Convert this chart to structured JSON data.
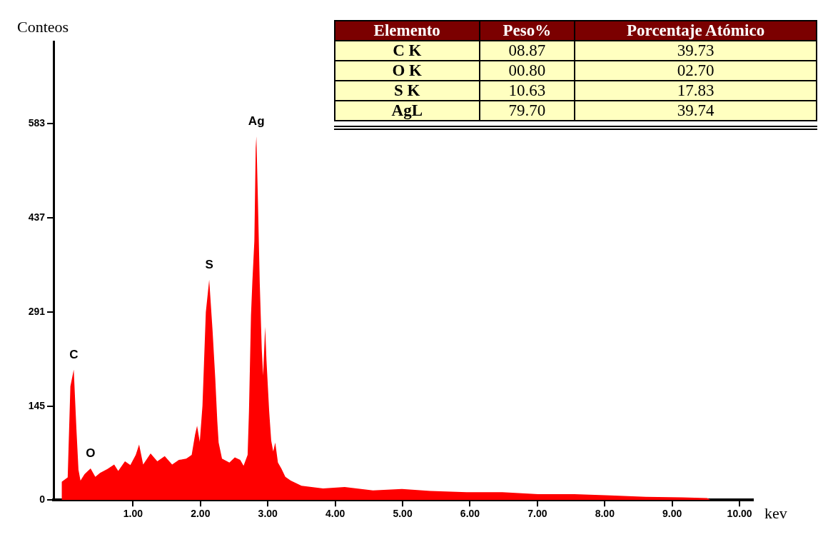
{
  "chart_data": [
    {
      "type": "area",
      "xlabel": "kev",
      "ylabel": "Conteos",
      "xlim": [
        -0.18,
        10.2
      ],
      "ylim": [
        0,
        710
      ],
      "xticks": [
        {
          "value": 1,
          "label": "1.00"
        },
        {
          "value": 2,
          "label": "2.00"
        },
        {
          "value": 3,
          "label": "3.00"
        },
        {
          "value": 4,
          "label": "4.00"
        },
        {
          "value": 5,
          "label": "5.00"
        },
        {
          "value": 6,
          "label": "6.00"
        },
        {
          "value": 7,
          "label": "7.00"
        },
        {
          "value": 8,
          "label": "8.00"
        },
        {
          "value": 9,
          "label": "9.00"
        },
        {
          "value": 10,
          "label": "10.00"
        }
      ],
      "yticks": [
        0,
        145,
        291,
        437,
        583
      ],
      "x": [
        -0.06,
        0.03,
        0.07,
        0.12,
        0.16,
        0.19,
        0.22,
        0.28,
        0.33,
        0.37,
        0.44,
        0.51,
        0.62,
        0.72,
        0.78,
        0.88,
        0.96,
        1.04,
        1.09,
        1.15,
        1.26,
        1.36,
        1.47,
        1.58,
        1.68,
        1.79,
        1.87,
        1.92,
        1.95,
        1.99,
        2.03,
        2.08,
        2.13,
        2.18,
        2.22,
        2.25,
        2.27,
        2.32,
        2.43,
        2.51,
        2.59,
        2.64,
        2.7,
        2.72,
        2.75,
        2.77,
        2.8,
        2.82,
        2.83,
        2.85,
        2.88,
        2.91,
        2.93,
        2.96,
        2.98,
        3.02,
        3.05,
        3.08,
        3.11,
        3.15,
        3.2,
        3.26,
        3.34,
        3.5,
        3.82,
        4.14,
        4.56,
        4.99,
        5.41,
        5.95,
        6.48,
        7.01,
        7.55,
        8.08,
        8.61,
        9.15,
        9.52,
        9.57
      ],
      "series": [
        {
          "color": "#ff0000",
          "values": [
            28,
            35,
            176,
            202,
            109,
            47,
            30,
            40,
            45,
            49,
            36,
            42,
            48,
            55,
            45,
            60,
            54,
            70,
            86,
            55,
            72,
            60,
            68,
            55,
            62,
            64,
            70,
            101,
            115,
            90,
            146,
            291,
            341,
            262,
            188,
            122,
            89,
            64,
            58,
            66,
            62,
            53,
            70,
            137,
            286,
            337,
            401,
            545,
            563,
            477,
            336,
            233,
            193,
            268,
            216,
            137,
            92,
            75,
            89,
            58,
            49,
            36,
            30,
            22,
            18,
            20,
            15,
            17,
            14,
            12,
            12,
            9,
            9,
            7,
            5,
            4,
            3,
            0
          ]
        }
      ],
      "annotations": [
        {
          "text": "C",
          "x": 0.12,
          "y": 202
        },
        {
          "text": "O",
          "x": 0.37,
          "y": 49
        },
        {
          "text": "S",
          "x": 2.13,
          "y": 341
        },
        {
          "text": "Ag",
          "x": 2.83,
          "y": 563
        }
      ]
    },
    {
      "type": "other",
      "ylabel": "Elemento",
      "categories": [
        "Peso%",
        "Porcentaje Atómico"
      ],
      "y_categories": [
        "C K",
        "O K",
        "S K",
        "AgL"
      ],
      "cell_labels": [
        [
          "08.87",
          "39.73"
        ],
        [
          "00.80",
          "02.70"
        ],
        [
          "10.63",
          "17.83"
        ],
        [
          "79.70",
          "39.74"
        ]
      ]
    }
  ]
}
